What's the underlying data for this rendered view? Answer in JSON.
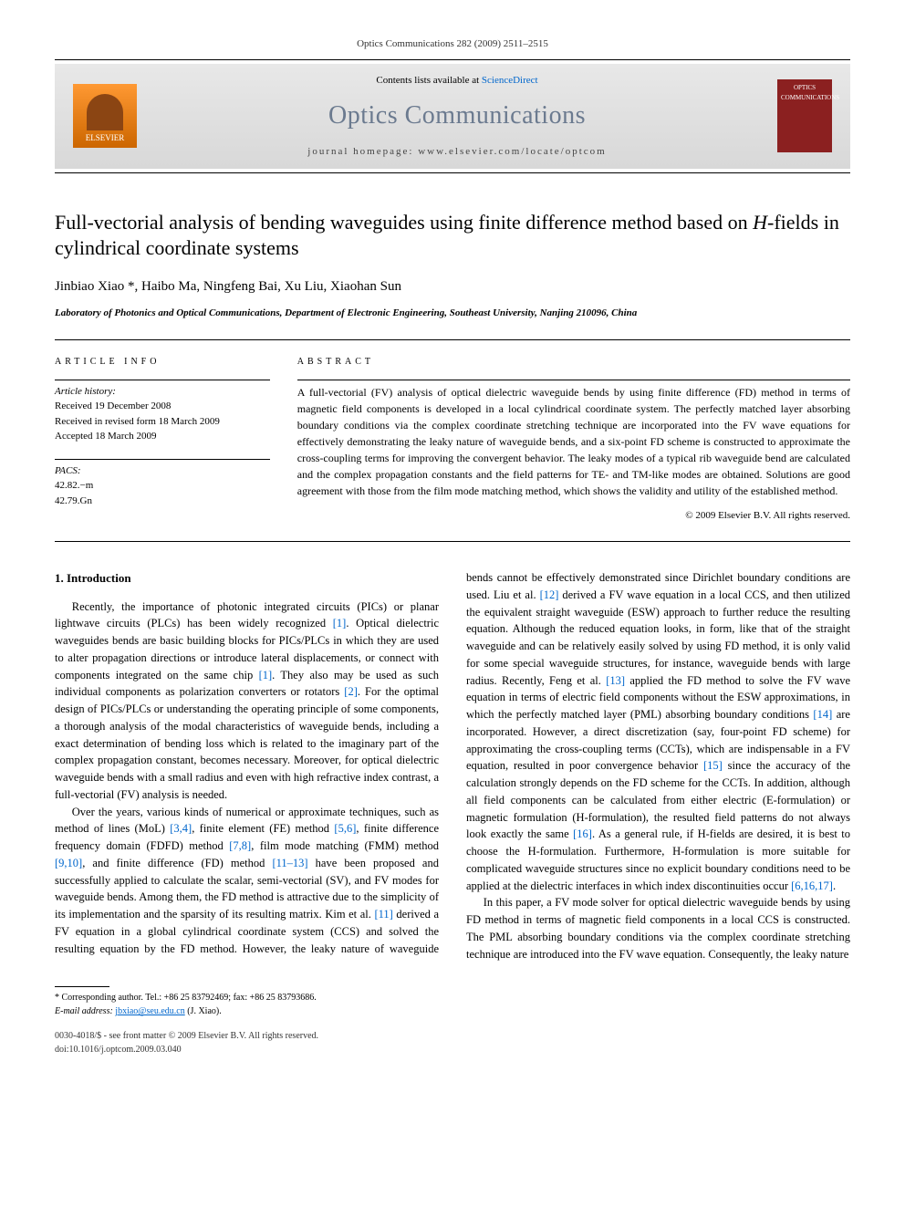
{
  "header": {
    "citation": "Optics Communications 282 (2009) 2511–2515"
  },
  "banner": {
    "publisher": "ELSEVIER",
    "contents_prefix": "Contents lists available at ",
    "contents_link": "ScienceDirect",
    "journal_name": "Optics Communications",
    "homepage_prefix": "journal homepage: ",
    "homepage_url": "www.elsevier.com/locate/optcom",
    "cover_text": "OPTICS COMMUNICATIONS"
  },
  "article": {
    "title_part1": "Full-vectorial analysis of bending waveguides using finite difference method based on ",
    "title_italic": "H",
    "title_part2": "-fields in cylindrical coordinate systems",
    "authors": "Jinbiao Xiao *, Haibo Ma, Ningfeng Bai, Xu Liu, Xiaohan Sun",
    "affiliation": "Laboratory of Photonics and Optical Communications, Department of Electronic Engineering, Southeast University, Nanjing 210096, China"
  },
  "info": {
    "label": "ARTICLE INFO",
    "history_label": "Article history:",
    "received": "Received 19 December 2008",
    "revised": "Received in revised form 18 March 2009",
    "accepted": "Accepted 18 March 2009",
    "pacs_label": "PACS:",
    "pacs1": "42.82.−m",
    "pacs2": "42.79.Gn"
  },
  "abstract": {
    "label": "ABSTRACT",
    "text": "A full-vectorial (FV) analysis of optical dielectric waveguide bends by using finite difference (FD) method in terms of magnetic field components is developed in a local cylindrical coordinate system. The perfectly matched layer absorbing boundary conditions via the complex coordinate stretching technique are incorporated into the FV wave equations for effectively demonstrating the leaky nature of waveguide bends, and a six-point FD scheme is constructed to approximate the cross-coupling terms for improving the convergent behavior. The leaky modes of a typical rib waveguide bend are calculated and the complex propagation constants and the field patterns for TE- and TM-like modes are obtained. Solutions are good agreement with those from the film mode matching method, which shows the validity and utility of the established method.",
    "copyright": "© 2009 Elsevier B.V. All rights reserved."
  },
  "body": {
    "heading": "1. Introduction",
    "para1_a": "Recently, the importance of photonic integrated circuits (PICs) or planar lightwave circuits (PLCs) has been widely recognized ",
    "para1_ref1": "[1]",
    "para1_b": ". Optical dielectric waveguides bends are basic building blocks for PICs/PLCs in which they are used to alter propagation directions or introduce lateral displacements, or connect with components integrated on the same chip ",
    "para1_ref2": "[1]",
    "para1_c": ". They also may be used as such individual components as polarization converters or rotators ",
    "para1_ref3": "[2]",
    "para1_d": ". For the optimal design of PICs/PLCs or understanding the operating principle of some components, a thorough analysis of the modal characteristics of waveguide bends, including a exact determination of bending loss which is related to the imaginary part of the complex propagation constant, becomes necessary. Moreover, for optical dielectric waveguide bends with a small radius and even with high refractive index contrast, a full-vectorial (FV) analysis is needed.",
    "para2_a": "Over the years, various kinds of numerical or approximate techniques, such as method of lines (MoL) ",
    "para2_ref1": "[3,4]",
    "para2_b": ", finite element (FE) method ",
    "para2_ref2": "[5,6]",
    "para2_c": ", finite difference frequency domain (FDFD) method ",
    "para2_ref3": "[7,8]",
    "para2_d": ", film mode matching (FMM) method ",
    "para2_ref4": "[9,10]",
    "para2_e": ", and finite difference (FD) method ",
    "para2_ref5": "[11–13]",
    "para2_f": " have been proposed and successfully applied to calculate the scalar, semi-vectorial (SV), and FV modes for waveguide bends. Among them, the FD method is attractive due to the simplicity of its implementation and the sparsity of its resulting matrix. Kim et al. ",
    "para2_ref6": "[11]",
    "para2_g": " derived a FV equation in a global cylindrical coordinate system (CCS) and solved the resulting equation by the FD method. However, the leaky nature of waveguide bends cannot be effectively demonstrated since Dirichlet boundary conditions are used. Liu et al. ",
    "para2_ref7": "[12]",
    "para2_h": " derived a FV wave equation in a local CCS, and then utilized the equivalent straight waveguide (ESW) approach to further reduce the resulting equation. Although the reduced equation looks, in form, like that of the straight waveguide and can be relatively easily solved by using FD method, it is only valid for some special waveguide structures, for instance, waveguide bends with large radius. Recently, Feng et al. ",
    "para2_ref8": "[13]",
    "para2_i": " applied the FD method to solve the FV wave equation in terms of electric field components without the ESW approximations, in which the perfectly matched layer (PML) absorbing boundary conditions ",
    "para2_ref9": "[14]",
    "para2_j": " are incorporated. However, a direct discretization (say, four-point FD scheme) for approximating the cross-coupling terms (CCTs), which are indispensable in a FV equation, resulted in poor convergence behavior ",
    "para2_ref10": "[15]",
    "para2_k": " since the accuracy of the calculation strongly depends on the FD scheme for the CCTs. In addition, although all field components can be calculated from either electric (E-formulation) or magnetic formulation (H-formulation), the resulted field patterns do not always look exactly the same ",
    "para2_ref11": "[16]",
    "para2_l": ". As a general rule, if H-fields are desired, it is best to choose the H-formulation. Furthermore, H-formulation is more suitable for complicated waveguide structures since no explicit boundary conditions need to be applied at the dielectric interfaces in which index discontinuities occur ",
    "para2_ref12": "[6,16,17]",
    "para2_m": ".",
    "para3": "In this paper, a FV mode solver for optical dielectric waveguide bends by using FD method in terms of magnetic field components in a local CCS is constructed. The PML absorbing boundary conditions via the complex coordinate stretching technique are introduced into the FV wave equation. Consequently, the leaky nature"
  },
  "footnote": {
    "corresponding": "* Corresponding author. Tel.: +86 25 83792469; fax: +86 25 83793686.",
    "email_label": "E-mail address: ",
    "email": "jbxiao@seu.edu.cn",
    "email_suffix": " (J. Xiao)."
  },
  "footer": {
    "line1": "0030-4018/$ - see front matter © 2009 Elsevier B.V. All rights reserved.",
    "line2": "doi:10.1016/j.optcom.2009.03.040"
  },
  "colors": {
    "link": "#0066cc",
    "journal_title": "#6b7a8f",
    "elsevier_bg": "#ff9933",
    "cover_bg": "#8b2020"
  }
}
